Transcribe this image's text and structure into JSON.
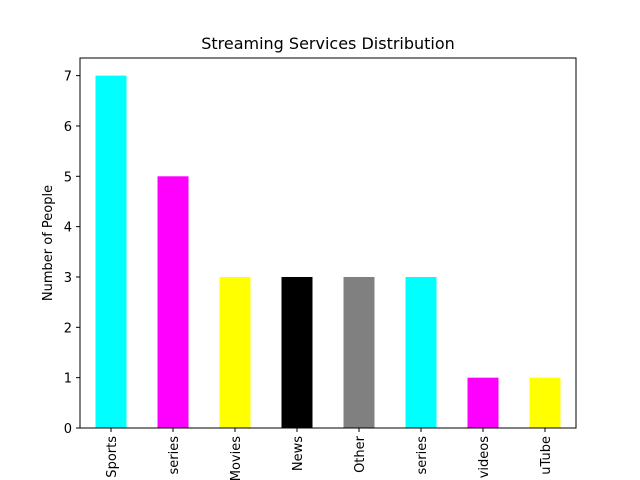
{
  "chart_data": {
    "type": "bar",
    "title": "Streaming Services Distribution",
    "xlabel": "",
    "ylabel": "Number of People",
    "categories": [
      "Sports",
      "series",
      "Movies",
      "News",
      "Other",
      "series",
      "videos",
      "uTube"
    ],
    "values": [
      7,
      5,
      3,
      3,
      3,
      3,
      1,
      1
    ],
    "bar_colors": [
      "#00ffff",
      "#ff00ff",
      "#ffff00",
      "#000000",
      "#808080",
      "#00ffff",
      "#ff00ff",
      "#ffff00"
    ],
    "ylim": [
      0,
      7.35
    ],
    "yticks": [
      0,
      1,
      2,
      3,
      4,
      5,
      6,
      7
    ],
    "grid": false,
    "legend": "none"
  }
}
